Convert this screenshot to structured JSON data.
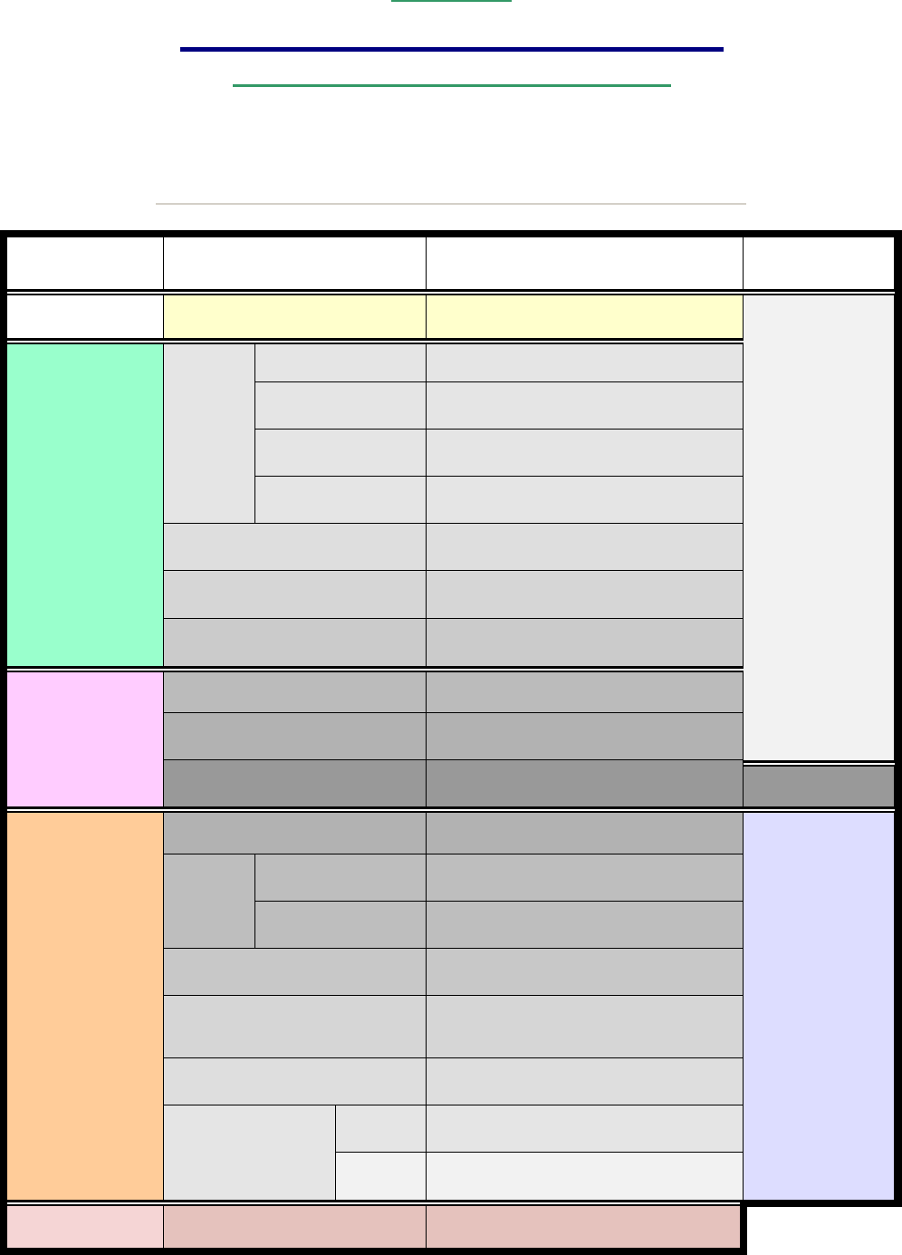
{
  "decorations": {
    "top_rule_color": "#339966",
    "title_rule_color": "#000080",
    "subtitle_rule_color": "#339966",
    "separator_color": "#d4d0c8"
  },
  "table": {
    "border_color": "#000000",
    "colors": {
      "header": "#ffffff",
      "yellow": "#ffffcc",
      "side_gray": "#f2f2f2",
      "green": "#99ffcc",
      "pink": "#ffccff",
      "orange": "#ffcc99",
      "lavender": "#ddddff",
      "footer_left": "#f5d5d5",
      "footer": "#e5c2bd"
    }
  }
}
